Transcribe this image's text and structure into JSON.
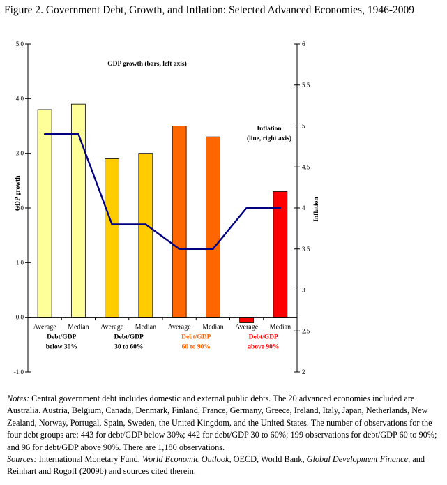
{
  "figure_title": "Figure 2. Government Debt, Growth, and Inflation:  Selected Advanced Economies, 1946-2009",
  "chart_data": {
    "type": "bar",
    "title": "",
    "annotations": [
      "GDP growth (bars, left axis)",
      "Inflation",
      "(line, right axis)"
    ],
    "ylabel": "GDP growth",
    "y2label": "Inflation",
    "ylim": [
      -1.0,
      5.0
    ],
    "y2lim": [
      2,
      6
    ],
    "yticks": [
      "5.0",
      "4.0",
      "3.0",
      "2.0",
      "1.0",
      "0.0",
      "-1.0"
    ],
    "y2ticks": [
      "6",
      "5.5",
      "5",
      "4.5",
      "4",
      "3.5",
      "3",
      "2.5",
      "2"
    ],
    "categories": [
      "Average",
      "Median",
      "Average",
      "Median",
      "Average",
      "Median",
      "Average",
      "Median"
    ],
    "groups": [
      {
        "line1": "Debt/GDP",
        "line2": "below 30%",
        "color": "#000000"
      },
      {
        "line1": "Debt/GDP",
        "line2": "30 to 60%",
        "color": "#000000"
      },
      {
        "line1": "Debt/GDP",
        "line2": "60 to 90%",
        "color": "#ff6600"
      },
      {
        "line1": "Debt/GDP",
        "line2": "above 90%",
        "color": "#ff0000"
      }
    ],
    "series": [
      {
        "kind": "bar",
        "axis": "left",
        "values": [
          3.8,
          3.9,
          2.9,
          3.0,
          3.5,
          3.3,
          -0.1,
          2.3
        ],
        "colors": [
          "#ffff99",
          "#ffff99",
          "#ffcc00",
          "#ffcc00",
          "#ff6600",
          "#ff6600",
          "#ff0000",
          "#ff0000"
        ]
      },
      {
        "kind": "line",
        "axis": "right",
        "color": "#000080",
        "values": [
          4.9,
          4.9,
          3.8,
          3.8,
          3.5,
          3.5,
          4.0,
          4.0
        ]
      }
    ],
    "grid": false,
    "legend": "none"
  },
  "notes": {
    "notes_label": "Notes:",
    "notes_text": " Central government debt includes domestic and external public debts. The 20 advanced economies included are Australia. Austria, Belgium, Canada, Denmark, Finland, France, Germany, Greece, Ireland, Italy, Japan, Netherlands, New Zealand, Norway, Portugal, Spain, Sweden, the United Kingdom, and the United States.  The number of observations for the four debt groups are:  443 for debt/GDP below 30%; 442 for debt/GDP 30 to 60%; 199 observations for debt/GDP 60 to 90%; and 96 for debt/GDP above 90%.  There are 1,180 observations.",
    "sources_label": "Sources:",
    "sources_text1": " International Monetary Fund, ",
    "weo": "World Economic Outlook",
    "sources_text2": ", OECD, World Bank, ",
    "gdf": "Global Development Finance,",
    "sources_text3": " and  Reinhart and Rogoff (2009b) and sources cited therein."
  }
}
